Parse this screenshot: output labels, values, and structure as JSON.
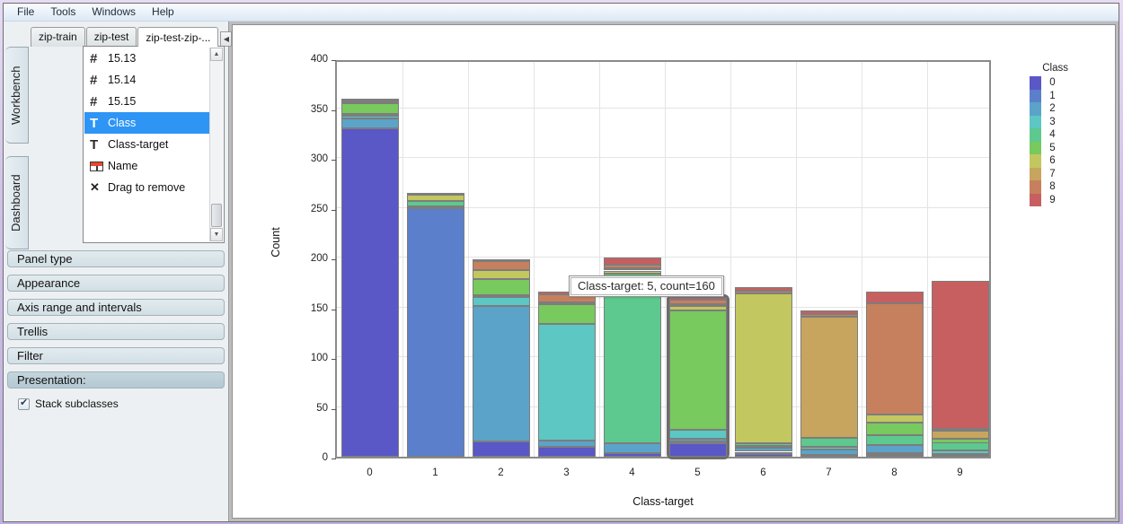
{
  "menu": {
    "items": [
      "File",
      "Tools",
      "Windows",
      "Help"
    ]
  },
  "sidebar": {
    "dataset_tabs": [
      {
        "label": "zip-train",
        "active": false
      },
      {
        "label": "zip-test",
        "active": false
      },
      {
        "label": "zip-test-zip-...",
        "active": true
      }
    ],
    "tab_scroll": {
      "left_icon": "scroll-left-icon",
      "right_icon": "scroll-right-icon"
    },
    "side_tabs": [
      {
        "label": "Workbench"
      },
      {
        "label": "Dashboard"
      }
    ],
    "fields": [
      {
        "icon": "number-icon",
        "label": "15.13",
        "selected": false
      },
      {
        "icon": "number-icon",
        "label": "15.14",
        "selected": false
      },
      {
        "icon": "number-icon",
        "label": "15.15",
        "selected": false
      },
      {
        "icon": "text-icon",
        "label": "Class",
        "selected": true
      },
      {
        "icon": "text-icon",
        "label": "Class-target",
        "selected": false
      },
      {
        "icon": "table-icon",
        "label": "Name",
        "selected": false
      },
      {
        "icon": "remove-icon",
        "label": "Drag to remove",
        "selected": false
      }
    ],
    "panels": [
      "Panel type",
      "Appearance",
      "Axis range and intervals",
      "Trellis",
      "Filter"
    ],
    "active_panel": "Presentation:",
    "presentation": {
      "checkbox_label": "Stack subclasses",
      "checked": true
    }
  },
  "chart_data": {
    "type": "bar",
    "stacked": true,
    "xlabel": "Class-target",
    "ylabel": "Count",
    "ylim": [
      0,
      400
    ],
    "yticks": [
      0,
      50,
      100,
      150,
      200,
      250,
      300,
      350,
      400
    ],
    "grid": true,
    "categories": [
      "0",
      "1",
      "2",
      "3",
      "4",
      "5",
      "6",
      "7",
      "8",
      "9"
    ],
    "totals": [
      359,
      264,
      198,
      166,
      200,
      160,
      170,
      147,
      166,
      177
    ],
    "series": [
      {
        "name": "0",
        "color": "#5a57c7",
        "values": [
          330,
          0,
          15,
          10,
          4,
          14,
          3,
          2,
          2,
          1
        ]
      },
      {
        "name": "1",
        "color": "#5b7fcb",
        "values": [
          0,
          250,
          0,
          0,
          0,
          1,
          2,
          0,
          2,
          0
        ]
      },
      {
        "name": "2",
        "color": "#5ba3c9",
        "values": [
          10,
          0,
          136,
          6,
          10,
          3,
          4,
          5,
          8,
          2
        ]
      },
      {
        "name": "3",
        "color": "#5cc7c3",
        "values": [
          2,
          1,
          9,
          117,
          0,
          9,
          2,
          3,
          0,
          3
        ]
      },
      {
        "name": "4",
        "color": "#5dc98e",
        "values": [
          2,
          6,
          2,
          0,
          170,
          0,
          3,
          9,
          10,
          8
        ]
      },
      {
        "name": "5",
        "color": "#78c95e",
        "values": [
          11,
          0,
          16,
          20,
          0,
          120,
          0,
          0,
          12,
          4
        ]
      },
      {
        "name": "6",
        "color": "#c2c75f",
        "values": [
          1,
          6,
          9,
          2,
          3,
          4,
          150,
          0,
          8,
          0
        ]
      },
      {
        "name": "7",
        "color": "#c8a55e",
        "values": [
          0,
          1,
          0,
          0,
          2,
          2,
          0,
          122,
          0,
          8
        ]
      },
      {
        "name": "8",
        "color": "#c7805d",
        "values": [
          2,
          0,
          9,
          8,
          4,
          5,
          3,
          2,
          112,
          2
        ]
      },
      {
        "name": "9",
        "color": "#c75f61",
        "values": [
          1,
          0,
          2,
          3,
          7,
          2,
          3,
          4,
          12,
          149
        ]
      }
    ],
    "legend": {
      "title": "Class",
      "position": "right",
      "entries": [
        "0",
        "1",
        "2",
        "3",
        "4",
        "5",
        "6",
        "7",
        "8",
        "9"
      ]
    },
    "selected_category_index": 5,
    "tooltip": {
      "text": "Class-target: 5, count=160"
    }
  }
}
